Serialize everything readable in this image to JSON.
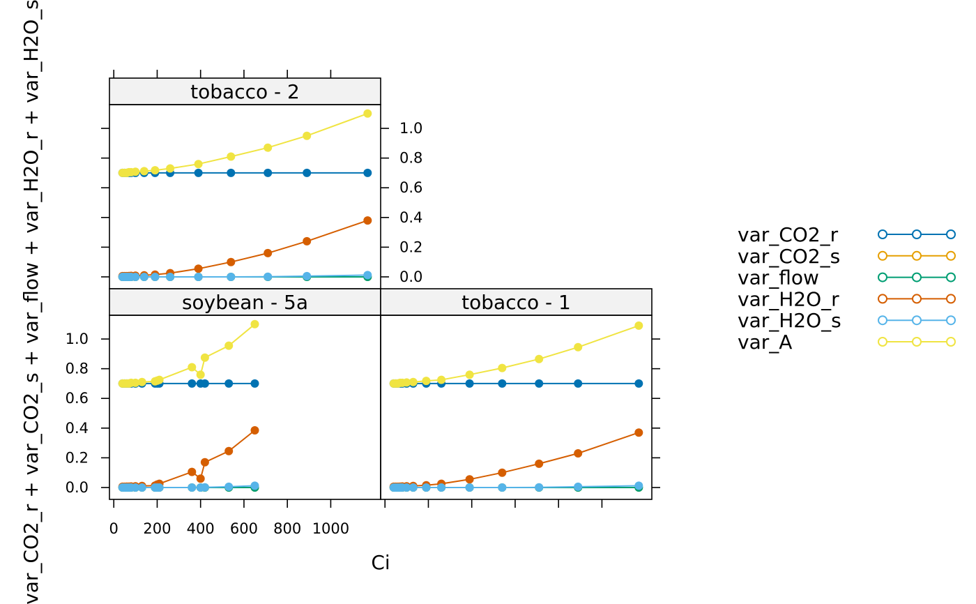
{
  "chart_data": {
    "type": "line",
    "xlabel": "Ci",
    "ylabel": "var_CO2_r + var_CO2_s + var_flow + var_H2O_r + var_H2O_s",
    "xlim": [
      -20,
      1230
    ],
    "ylim": [
      -0.08,
      1.16
    ],
    "xticks": [
      0,
      200,
      400,
      600,
      800,
      1000
    ],
    "xtick_labels": [
      "0",
      "200",
      "400",
      "600",
      "800",
      "1000"
    ],
    "yticks": [
      0.0,
      0.2,
      0.4,
      0.6,
      0.8,
      1.0
    ],
    "ytick_labels": [
      "0.0",
      "0.2",
      "0.4",
      "0.6",
      "0.8",
      "1.0"
    ],
    "legend": [
      {
        "name": "var_CO2_r",
        "color": "#0072B2"
      },
      {
        "name": "var_CO2_s",
        "color": "#E69F00"
      },
      {
        "name": "var_flow",
        "color": "#009E73"
      },
      {
        "name": "var_H2O_r",
        "color": "#D55E00"
      },
      {
        "name": "var_H2O_s",
        "color": "#56B4E9"
      },
      {
        "name": "var_A",
        "color": "#F0E442"
      }
    ],
    "legend_position": "right",
    "panels": [
      {
        "strip": "tobacco - 2",
        "x": [
          40,
          50,
          60,
          70,
          80,
          100,
          140,
          190,
          260,
          390,
          540,
          710,
          890,
          1170
        ],
        "series": [
          {
            "name": "var_CO2_r",
            "values": [
              0.7,
              0.7,
              0.7,
              0.7,
              0.7,
              0.7,
              0.7,
              0.7,
              0.7,
              0.7,
              0.7,
              0.7,
              0.7,
              0.7
            ]
          },
          {
            "name": "var_CO2_s",
            "values": [
              0.0,
              0.0,
              0.0,
              0.0,
              0.0,
              0.0,
              0.0,
              0.0,
              0.0,
              0.0,
              0.0,
              0.0,
              0.0,
              0.0
            ]
          },
          {
            "name": "var_flow",
            "values": [
              0.0,
              0.0,
              0.0,
              0.0,
              0.0,
              0.0,
              0.0,
              0.0,
              0.0,
              0.0,
              0.0,
              0.0,
              0.0,
              0.0
            ]
          },
          {
            "name": "var_H2O_r",
            "values": [
              0.005,
              0.005,
              0.005,
              0.006,
              0.007,
              0.008,
              0.01,
              0.015,
              0.025,
              0.055,
              0.1,
              0.16,
              0.24,
              0.38
            ]
          },
          {
            "name": "var_H2O_s",
            "values": [
              0.0,
              0.0,
              0.0,
              0.0,
              0.0,
              0.0,
              0.0,
              0.0,
              0.0,
              0.0,
              0.0,
              0.001,
              0.005,
              0.012
            ]
          },
          {
            "name": "var_A",
            "values": [
              0.7,
              0.7,
              0.7,
              0.705,
              0.705,
              0.708,
              0.712,
              0.718,
              0.73,
              0.76,
              0.81,
              0.87,
              0.95,
              1.1
            ]
          }
        ]
      },
      {
        "strip": "soybean - 5a",
        "x": [
          40,
          50,
          60,
          70,
          80,
          100,
          130,
          190,
          200,
          210,
          360,
          400,
          420,
          530,
          650
        ],
        "series": [
          {
            "name": "var_CO2_r",
            "values": [
              0.7,
              0.7,
              0.7,
              0.7,
              0.7,
              0.7,
              0.7,
              0.7,
              0.7,
              0.7,
              0.7,
              0.7,
              0.7,
              0.7,
              0.7
            ]
          },
          {
            "name": "var_CO2_s",
            "values": [
              0.0,
              0.0,
              0.0,
              0.0,
              0.0,
              0.0,
              0.0,
              0.0,
              0.0,
              0.0,
              0.0,
              0.0,
              0.0,
              0.0,
              0.0
            ]
          },
          {
            "name": "var_flow",
            "values": [
              0.0,
              0.0,
              0.0,
              0.0,
              0.0,
              0.0,
              0.0,
              0.0,
              0.0,
              0.0,
              0.0,
              0.0,
              0.0,
              0.0,
              0.0
            ]
          },
          {
            "name": "var_H2O_r",
            "values": [
              0.005,
              0.005,
              0.006,
              0.006,
              0.007,
              0.008,
              0.01,
              0.013,
              0.02,
              0.025,
              0.105,
              0.06,
              0.17,
              0.245,
              0.385
            ]
          },
          {
            "name": "var_H2O_s",
            "values": [
              0.0,
              0.0,
              0.0,
              0.0,
              0.0,
              0.0,
              0.0,
              0.0,
              0.0,
              0.0,
              0.0,
              0.0,
              0.001,
              0.005,
              0.012
            ]
          },
          {
            "name": "var_A",
            "values": [
              0.7,
              0.7,
              0.7,
              0.7,
              0.705,
              0.705,
              0.71,
              0.715,
              0.72,
              0.725,
              0.81,
              0.76,
              0.875,
              0.955,
              1.1
            ]
          }
        ]
      },
      {
        "strip": "tobacco - 1",
        "x": [
          40,
          50,
          60,
          70,
          80,
          100,
          130,
          190,
          260,
          390,
          540,
          710,
          890,
          1170
        ],
        "series": [
          {
            "name": "var_CO2_r",
            "values": [
              0.7,
              0.7,
              0.7,
              0.7,
              0.7,
              0.7,
              0.7,
              0.7,
              0.7,
              0.7,
              0.7,
              0.7,
              0.7,
              0.7
            ]
          },
          {
            "name": "var_CO2_s",
            "values": [
              0.0,
              0.0,
              0.0,
              0.0,
              0.0,
              0.0,
              0.0,
              0.0,
              0.0,
              0.0,
              0.0,
              0.0,
              0.0,
              0.0
            ]
          },
          {
            "name": "var_flow",
            "values": [
              0.0,
              0.0,
              0.0,
              0.0,
              0.0,
              0.0,
              0.0,
              0.0,
              0.0,
              0.0,
              0.0,
              0.0,
              0.0,
              0.0
            ]
          },
          {
            "name": "var_H2O_r",
            "values": [
              0.005,
              0.005,
              0.005,
              0.006,
              0.007,
              0.008,
              0.01,
              0.015,
              0.025,
              0.055,
              0.1,
              0.16,
              0.23,
              0.37
            ]
          },
          {
            "name": "var_H2O_s",
            "values": [
              0.0,
              0.0,
              0.0,
              0.0,
              0.0,
              0.0,
              0.0,
              0.0,
              0.0,
              0.0,
              0.0,
              0.001,
              0.005,
              0.012
            ]
          },
          {
            "name": "var_A",
            "values": [
              0.7,
              0.7,
              0.7,
              0.705,
              0.705,
              0.707,
              0.71,
              0.718,
              0.725,
              0.76,
              0.805,
              0.865,
              0.945,
              1.09
            ]
          }
        ]
      }
    ]
  }
}
